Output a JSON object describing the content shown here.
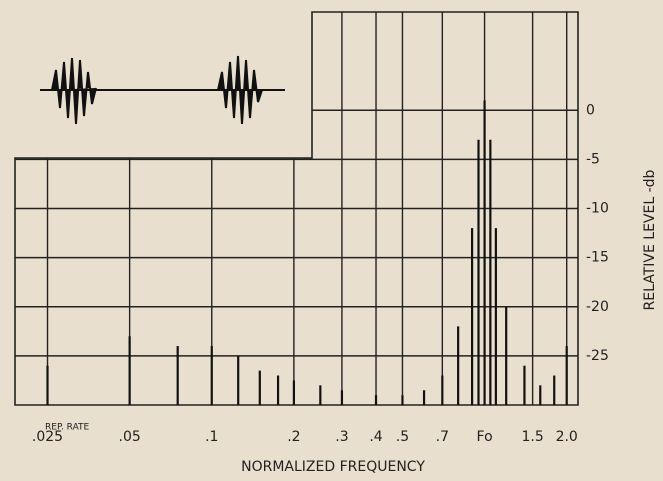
{
  "chart_data": {
    "type": "stem",
    "x_label": "NORMALIZED FREQUENCY",
    "y_label": "RELATIVE LEVEL -db",
    "annotation": "REP. RATE",
    "log_x": true,
    "grid": true,
    "color": "#111111",
    "x": [
      0.025,
      0.05,
      0.075,
      0.1,
      0.125,
      0.15,
      0.175,
      0.2,
      0.25,
      0.3,
      0.4,
      0.5,
      0.6,
      0.7,
      0.8,
      0.9,
      0.95,
      1.0,
      1.05,
      1.1,
      1.2,
      1.4,
      1.6,
      1.8,
      2.0
    ],
    "values": [
      -26,
      -23,
      -24,
      -24,
      -25,
      -26.5,
      -27,
      -27.5,
      -28,
      -28.5,
      -29,
      -29,
      -28.5,
      -27,
      -22,
      -12,
      -3,
      1,
      -3,
      -12,
      -20,
      -26,
      -28,
      -27,
      -24
    ],
    "xlim": [
      0.019,
      2.2
    ],
    "ylim": [
      -30,
      10
    ],
    "xticks": [
      {
        "value": 0.025,
        "label": ".025"
      },
      {
        "value": 0.05,
        "label": ".05"
      },
      {
        "value": 0.1,
        "label": ".1"
      },
      {
        "value": 0.2,
        "label": ".2"
      },
      {
        "value": 0.3,
        "label": ".3"
      },
      {
        "value": 0.4,
        "label": ".4"
      },
      {
        "value": 0.5,
        "label": ".5"
      },
      {
        "value": 0.7,
        "label": ".7"
      },
      {
        "value": 1,
        "label": "Fo"
      },
      1.5,
      {
        "value": 2,
        "label": "2.0"
      }
    ],
    "yticks": [
      0,
      -5,
      -10,
      -15,
      -20,
      -25
    ]
  }
}
